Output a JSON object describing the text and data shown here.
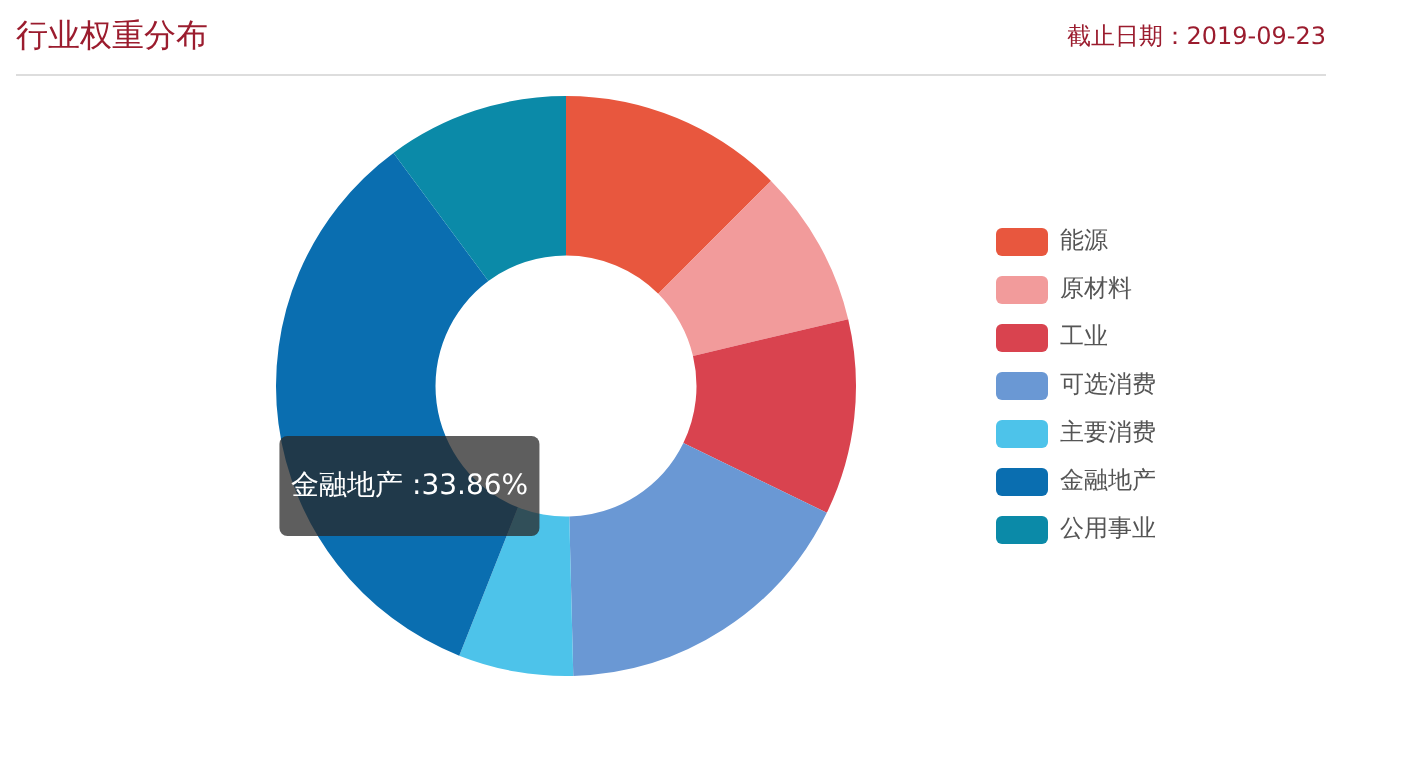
{
  "chart_data": {
    "type": "donut",
    "title": "行业权重分布",
    "subtitle": "截止日期：2019-09-23",
    "categories": [
      "能源",
      "原材料",
      "工业",
      "可选消费",
      "主要消费",
      "金融地产",
      "公用事业"
    ],
    "values": [
      12.5,
      8.8,
      10.9,
      17.4,
      6.4,
      33.86,
      10.14
    ],
    "colors": [
      "#e8573e",
      "#f29b9b",
      "#d9434f",
      "#6a98d4",
      "#4dc3ea",
      "#0a6eb0",
      "#0b8aa8"
    ],
    "value_labels": [
      null,
      null,
      null,
      null,
      null,
      "金融地产 :33.86%",
      null
    ],
    "legend": "right"
  }
}
